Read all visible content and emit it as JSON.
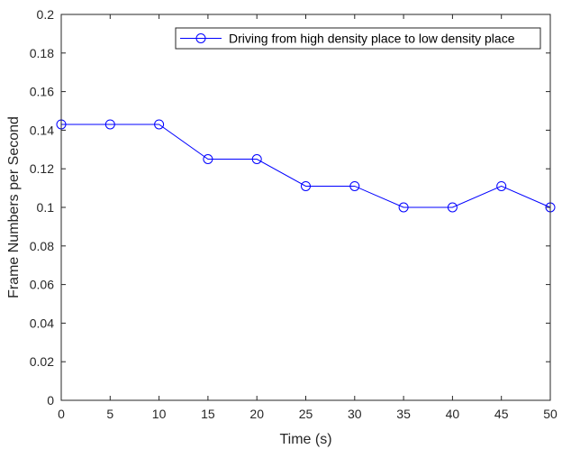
{
  "chart_data": {
    "type": "line",
    "title": "",
    "xlabel": "Time (s)",
    "ylabel": "Frame Numbers per Second",
    "xlim": [
      0,
      50
    ],
    "ylim": [
      0,
      0.2
    ],
    "xticks": [
      0,
      5,
      10,
      15,
      20,
      25,
      30,
      35,
      40,
      45,
      50
    ],
    "yticks": [
      0,
      0.02,
      0.04,
      0.06,
      0.08,
      0.1,
      0.12,
      0.14,
      0.16,
      0.18,
      0.2
    ],
    "xtick_labels": [
      "0",
      "5",
      "10",
      "15",
      "20",
      "25",
      "30",
      "35",
      "40",
      "45",
      "50"
    ],
    "ytick_labels": [
      "0",
      "0.02",
      "0.04",
      "0.06",
      "0.08",
      "0.1",
      "0.12",
      "0.14",
      "0.16",
      "0.18",
      "0.2"
    ],
    "grid": false,
    "legend_position": "top-right",
    "series": [
      {
        "name": "Driving from high density place to low density place",
        "color": "#0000ff",
        "marker": "circle",
        "x": [
          0,
          5,
          10,
          15,
          20,
          25,
          30,
          35,
          40,
          45,
          50
        ],
        "y": [
          0.143,
          0.143,
          0.143,
          0.125,
          0.125,
          0.111,
          0.111,
          0.1,
          0.1,
          0.111,
          0.1
        ]
      }
    ]
  }
}
